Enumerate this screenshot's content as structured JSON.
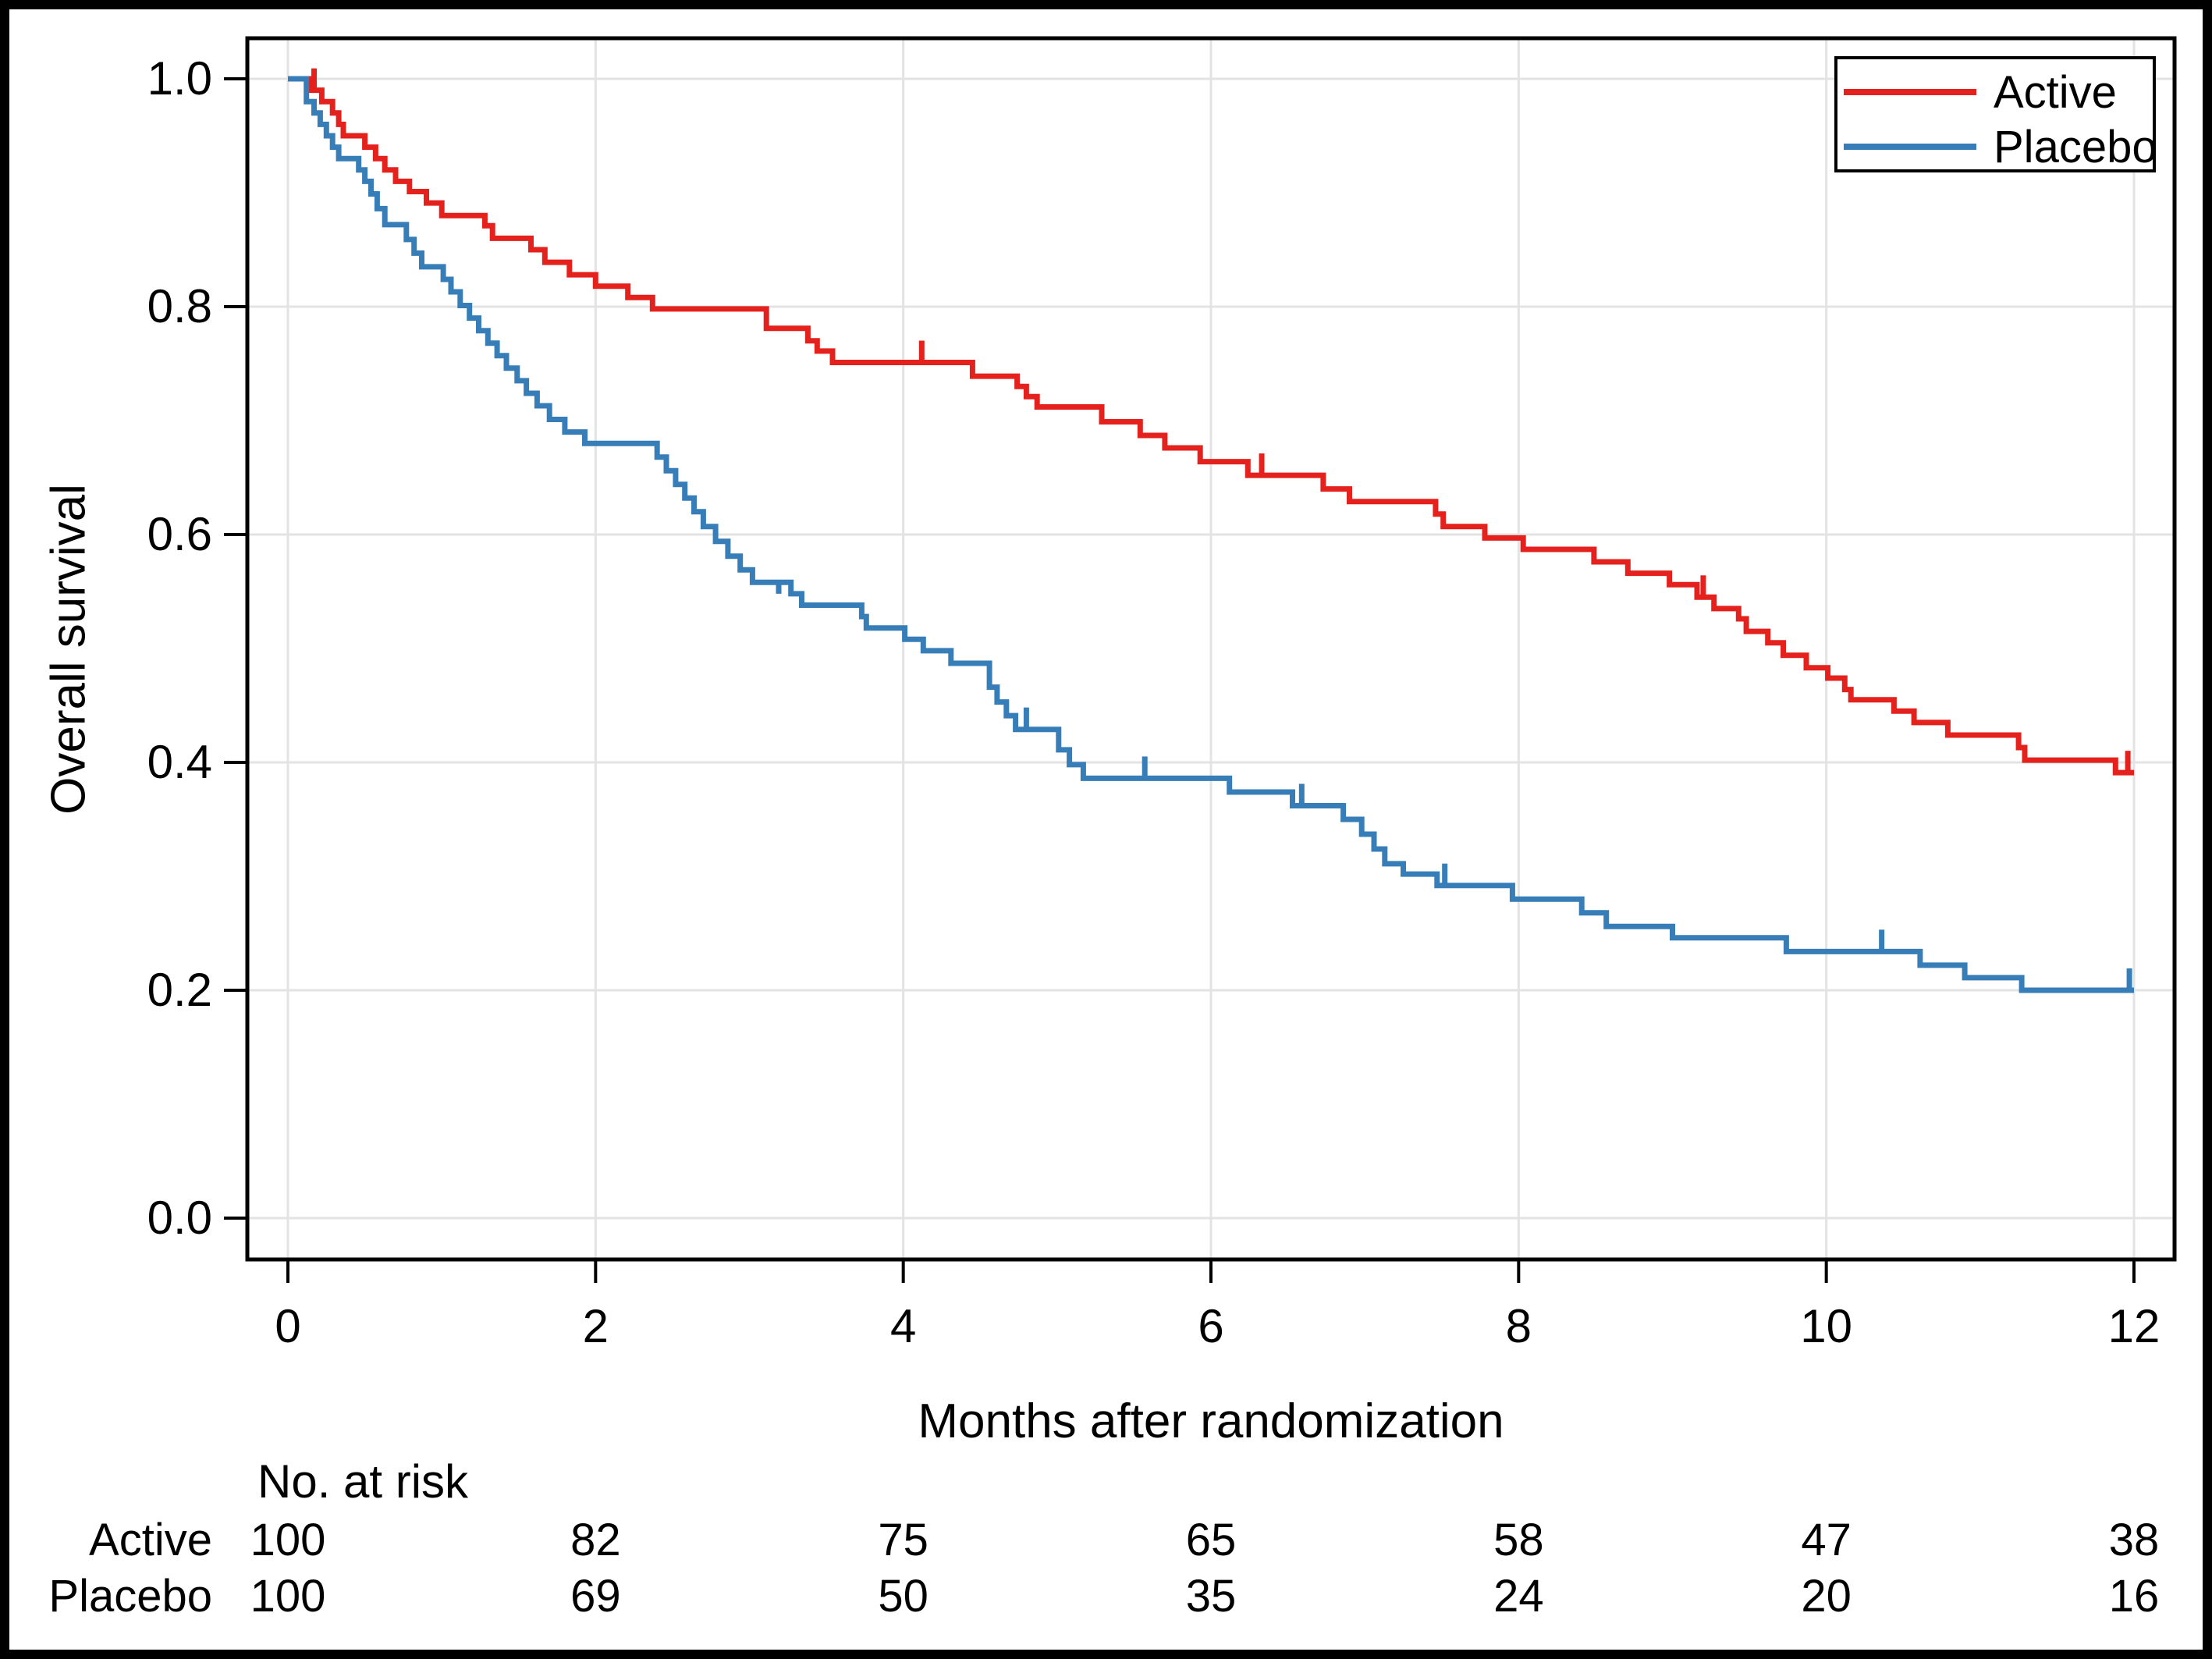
{
  "axes": {
    "x_title": "Months after randomization",
    "y_title": "Overall survival",
    "x_tick_labels": [
      "0",
      "2",
      "4",
      "6",
      "8",
      "10",
      "12"
    ],
    "x_tick_values": [
      0,
      2,
      4,
      6,
      8,
      10,
      12
    ],
    "y_tick_labels": [
      "1.0",
      "0.8",
      "0.6",
      "0.4",
      "0.2",
      "0.0"
    ],
    "y_tick_values": [
      1.0,
      0.8,
      0.6,
      0.4,
      0.2,
      0.0
    ]
  },
  "legend": {
    "items": [
      {
        "label": "Active",
        "color": "#E4211C"
      },
      {
        "label": "Placebo",
        "color": "#377EB8"
      }
    ]
  },
  "risk_table": {
    "header": "No. at risk",
    "time_points": [
      0,
      2,
      4,
      6,
      8,
      10,
      12
    ],
    "rows": [
      {
        "label": "Active",
        "counts": [
          "100",
          "82",
          "75",
          "65",
          "58",
          "47",
          "38"
        ]
      },
      {
        "label": "Placebo",
        "counts": [
          "100",
          "69",
          "50",
          "35",
          "24",
          "20",
          "16"
        ]
      }
    ]
  },
  "chart_data": {
    "type": "line",
    "subtype": "kaplan_meier_step",
    "title": "",
    "xlabel": "Months after randomization",
    "ylabel": "Overall survival",
    "xlim": [
      0,
      12
    ],
    "ylim": [
      0.0,
      1.0
    ],
    "grid": true,
    "legend_position": "top-right",
    "x_units": "months",
    "series": [
      {
        "name": "Active",
        "color": "#E4211C",
        "points": [
          [
            0.0,
            1.0
          ],
          [
            0.14,
            0.99
          ],
          [
            0.22,
            0.98
          ],
          [
            0.29,
            0.97
          ],
          [
            0.33,
            0.96
          ],
          [
            0.36,
            0.95
          ],
          [
            0.5,
            0.94
          ],
          [
            0.57,
            0.93
          ],
          [
            0.63,
            0.92
          ],
          [
            0.7,
            0.91
          ],
          [
            0.79,
            0.901
          ],
          [
            0.9,
            0.891
          ],
          [
            1.0,
            0.88
          ],
          [
            1.28,
            0.871
          ],
          [
            1.33,
            0.86
          ],
          [
            1.58,
            0.85
          ],
          [
            1.67,
            0.839
          ],
          [
            1.83,
            0.828
          ],
          [
            2.0,
            0.818
          ],
          [
            2.21,
            0.808
          ],
          [
            2.37,
            0.798
          ],
          [
            3.11,
            0.781
          ],
          [
            3.38,
            0.77
          ],
          [
            3.44,
            0.761
          ],
          [
            3.54,
            0.751
          ],
          [
            4.45,
            0.739
          ],
          [
            4.74,
            0.73
          ],
          [
            4.8,
            0.721
          ],
          [
            4.87,
            0.712
          ],
          [
            5.29,
            0.699
          ],
          [
            5.54,
            0.687
          ],
          [
            5.7,
            0.676
          ],
          [
            5.93,
            0.664
          ],
          [
            6.24,
            0.652
          ],
          [
            6.73,
            0.64
          ],
          [
            6.9,
            0.629
          ],
          [
            7.46,
            0.618
          ],
          [
            7.51,
            0.607
          ],
          [
            7.78,
            0.597
          ],
          [
            8.03,
            0.587
          ],
          [
            8.49,
            0.576
          ],
          [
            8.71,
            0.566
          ],
          [
            8.98,
            0.556
          ],
          [
            9.16,
            0.545
          ],
          [
            9.27,
            0.535
          ],
          [
            9.43,
            0.526
          ],
          [
            9.48,
            0.515
          ],
          [
            9.62,
            0.505
          ],
          [
            9.72,
            0.494
          ],
          [
            9.87,
            0.483
          ],
          [
            10.01,
            0.474
          ],
          [
            10.12,
            0.464
          ],
          [
            10.16,
            0.455
          ],
          [
            10.44,
            0.445
          ],
          [
            10.57,
            0.435
          ],
          [
            10.79,
            0.424
          ],
          [
            11.25,
            0.413
          ],
          [
            11.29,
            0.402
          ],
          [
            11.88,
            0.391
          ]
        ],
        "censor_marks": [
          [
            0.17,
            0.99
          ],
          [
            4.12,
            0.751
          ],
          [
            6.33,
            0.652
          ],
          [
            9.2,
            0.545
          ],
          [
            11.96,
            0.391
          ]
        ]
      },
      {
        "name": "Placebo",
        "color": "#377EB8",
        "points": [
          [
            0.0,
            1.0
          ],
          [
            0.12,
            0.98
          ],
          [
            0.17,
            0.97
          ],
          [
            0.21,
            0.96
          ],
          [
            0.25,
            0.95
          ],
          [
            0.29,
            0.94
          ],
          [
            0.33,
            0.93
          ],
          [
            0.46,
            0.92
          ],
          [
            0.5,
            0.91
          ],
          [
            0.54,
            0.899
          ],
          [
            0.58,
            0.886
          ],
          [
            0.63,
            0.872
          ],
          [
            0.77,
            0.859
          ],
          [
            0.82,
            0.847
          ],
          [
            0.87,
            0.835
          ],
          [
            1.01,
            0.824
          ],
          [
            1.06,
            0.813
          ],
          [
            1.12,
            0.801
          ],
          [
            1.18,
            0.79
          ],
          [
            1.24,
            0.779
          ],
          [
            1.3,
            0.768
          ],
          [
            1.36,
            0.757
          ],
          [
            1.42,
            0.746
          ],
          [
            1.49,
            0.735
          ],
          [
            1.55,
            0.724
          ],
          [
            1.62,
            0.713
          ],
          [
            1.7,
            0.701
          ],
          [
            1.8,
            0.69
          ],
          [
            1.93,
            0.68
          ],
          [
            2.4,
            0.668
          ],
          [
            2.46,
            0.656
          ],
          [
            2.52,
            0.644
          ],
          [
            2.58,
            0.632
          ],
          [
            2.64,
            0.62
          ],
          [
            2.7,
            0.607
          ],
          [
            2.78,
            0.594
          ],
          [
            2.86,
            0.581
          ],
          [
            2.94,
            0.569
          ],
          [
            3.02,
            0.558
          ],
          [
            3.19,
            0.548
          ],
          [
            3.27,
            0.548
          ],
          [
            3.19,
            0.558
          ],
          [
            3.34,
            0.538
          ],
          [
            3.73,
            0.528
          ],
          [
            3.76,
            0.518
          ],
          [
            4.01,
            0.508
          ],
          [
            4.13,
            0.498
          ],
          [
            4.31,
            0.487
          ],
          [
            4.56,
            0.466
          ],
          [
            4.61,
            0.453
          ],
          [
            4.67,
            0.441
          ],
          [
            4.73,
            0.429
          ],
          [
            5.01,
            0.411
          ],
          [
            5.08,
            0.398
          ],
          [
            5.17,
            0.386
          ],
          [
            6.12,
            0.374
          ],
          [
            6.53,
            0.362
          ],
          [
            6.86,
            0.35
          ],
          [
            6.98,
            0.337
          ],
          [
            7.06,
            0.324
          ],
          [
            7.13,
            0.311
          ],
          [
            7.25,
            0.302
          ],
          [
            7.47,
            0.292
          ],
          [
            7.96,
            0.28
          ],
          [
            8.41,
            0.268
          ],
          [
            8.57,
            0.256
          ],
          [
            9.0,
            0.246
          ],
          [
            9.74,
            0.234
          ],
          [
            10.61,
            0.222
          ],
          [
            10.9,
            0.211
          ],
          [
            11.27,
            0.2
          ]
        ],
        "censor_marks": [
          [
            4.8,
            0.429
          ],
          [
            5.57,
            0.386
          ],
          [
            6.59,
            0.362
          ],
          [
            7.52,
            0.292
          ],
          [
            10.36,
            0.234
          ],
          [
            11.97,
            0.2
          ]
        ]
      }
    ]
  }
}
